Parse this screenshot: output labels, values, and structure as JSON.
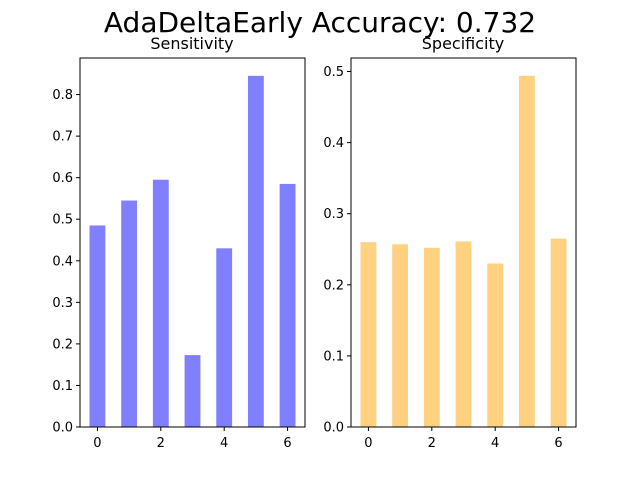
{
  "figure": {
    "title": "AdaDeltaEarly Accuracy: 0.732"
  },
  "chart_data": [
    {
      "type": "bar",
      "title": "Sensitivity",
      "categories": [
        0,
        1,
        2,
        3,
        4,
        5,
        6
      ],
      "values": [
        0.485,
        0.545,
        0.595,
        0.173,
        0.43,
        0.845,
        0.585
      ],
      "xticks": [
        0,
        2,
        4,
        6
      ],
      "yticks": [
        0.0,
        0.1,
        0.2,
        0.3,
        0.4,
        0.5,
        0.6,
        0.7,
        0.8
      ],
      "ylim": [
        0,
        0.888
      ],
      "xlim": [
        -0.55,
        6.55
      ],
      "color": "#8080ff",
      "xlabel": "",
      "ylabel": "",
      "grid": false
    },
    {
      "type": "bar",
      "title": "Specificity",
      "categories": [
        0,
        1,
        2,
        3,
        4,
        5,
        6
      ],
      "values": [
        0.26,
        0.257,
        0.252,
        0.261,
        0.23,
        0.494,
        0.265
      ],
      "xticks": [
        0,
        2,
        4,
        6
      ],
      "yticks": [
        0.0,
        0.1,
        0.2,
        0.3,
        0.4,
        0.5
      ],
      "ylim": [
        0,
        0.519
      ],
      "xlim": [
        -0.55,
        6.55
      ],
      "color": "#fed281",
      "xlabel": "",
      "ylabel": "",
      "grid": false
    }
  ]
}
